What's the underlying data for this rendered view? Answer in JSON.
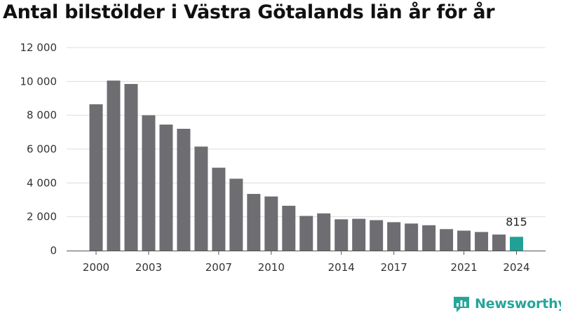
{
  "chart_data": {
    "type": "bar",
    "title": "Antal bilstölder i Västra Götalands län år för år",
    "xlabel": "",
    "ylabel": "",
    "ylim": [
      0,
      12000
    ],
    "yticks": [
      0,
      2000,
      4000,
      6000,
      8000,
      10000,
      12000
    ],
    "ytick_labels": [
      "0",
      "2 000",
      "4 000",
      "6 000",
      "8 000",
      "10 000",
      "12 000"
    ],
    "xtick_labels": [
      "2000",
      "2003",
      "2007",
      "2010",
      "2014",
      "2017",
      "2021",
      "2024"
    ],
    "grid": true,
    "categories": [
      "2000",
      "2001",
      "2002",
      "2003",
      "2004",
      "2005",
      "2006",
      "2007",
      "2008",
      "2009",
      "2010",
      "2011",
      "2012",
      "2013",
      "2014",
      "2015",
      "2016",
      "2017",
      "2018",
      "2019",
      "2020",
      "2021",
      "2022",
      "2023",
      "2024"
    ],
    "values": [
      8650,
      10050,
      9850,
      8000,
      7450,
      7200,
      6150,
      4900,
      4250,
      3350,
      3200,
      2650,
      2050,
      2200,
      1850,
      1880,
      1800,
      1680,
      1600,
      1500,
      1270,
      1180,
      1100,
      950,
      815
    ],
    "highlight_index": 24,
    "highlight_label": "815",
    "colors": {
      "bar": "#6e6d71",
      "highlight": "#1fa195",
      "grid": "#dddddd",
      "axis": "#555555"
    }
  },
  "brand": {
    "name": "Newsworthy",
    "color": "#26a69a",
    "icon": "chart-bubble-icon"
  }
}
